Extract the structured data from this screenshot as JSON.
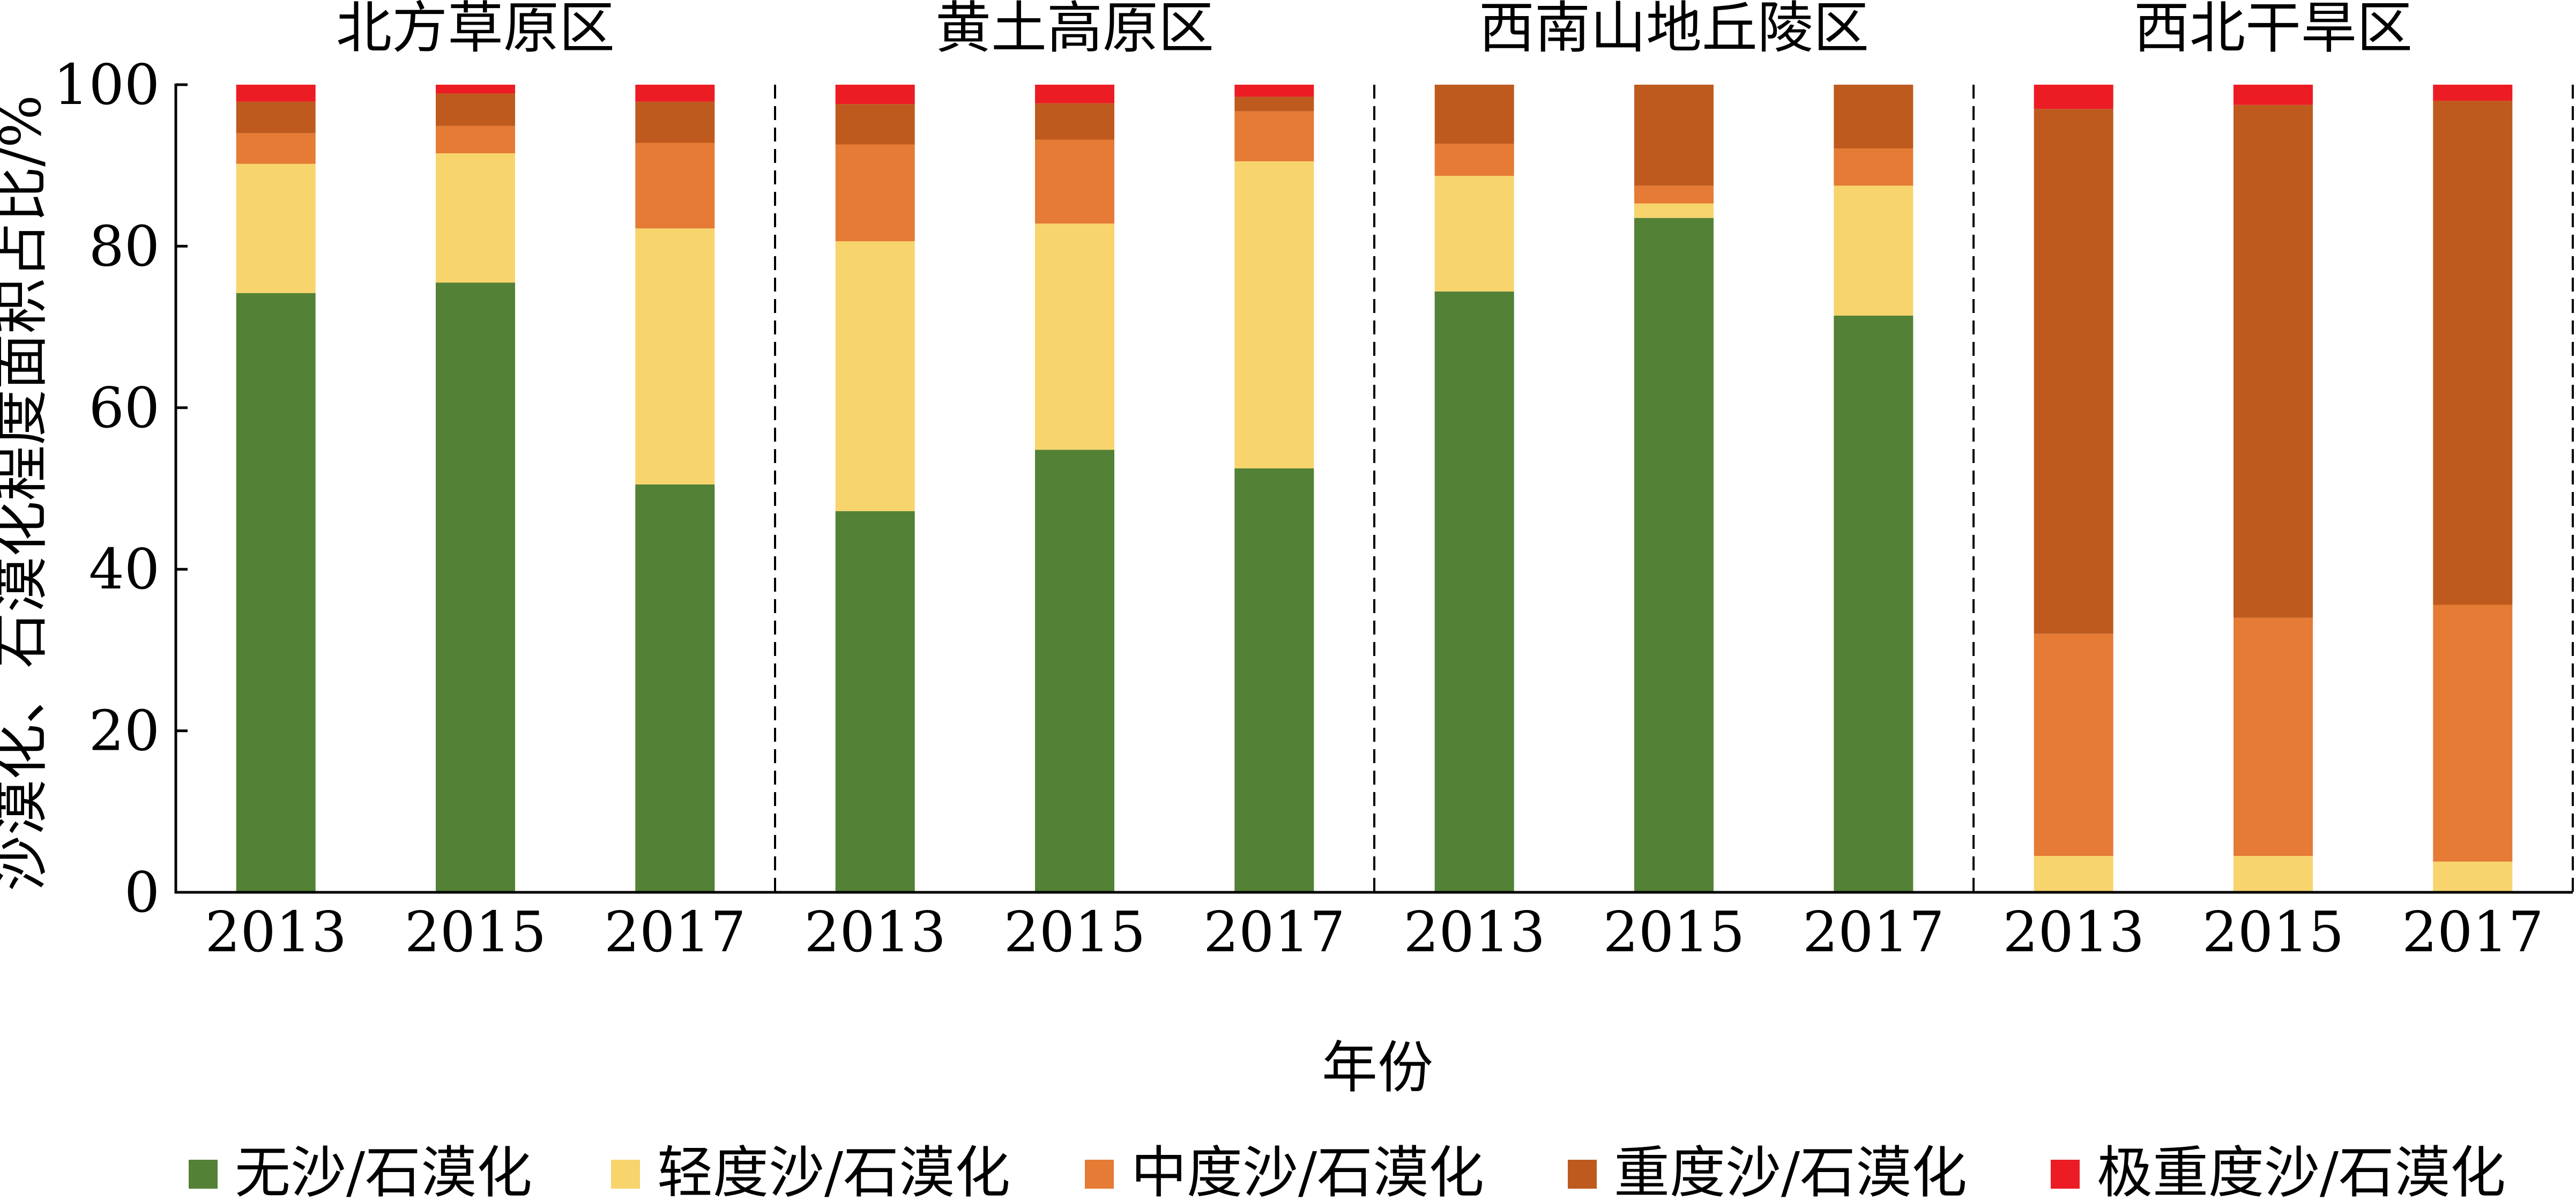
{
  "chart_data": {
    "type": "bar",
    "stacked": true,
    "ylabel": "沙漠化、石漠化程度面积占比/%",
    "xlabel": "年份",
    "ylim": [
      0,
      100
    ],
    "yticks": [
      0,
      20,
      40,
      60,
      80,
      100
    ],
    "legend_position": "bottom",
    "series": [
      {
        "name": "无沙/石漠化",
        "color": "#538135"
      },
      {
        "name": "轻度沙/石漠化",
        "color": "#F8D46D"
      },
      {
        "name": "中度沙/石漠化",
        "color": "#E57B35"
      },
      {
        "name": "重度沙/石漠化",
        "color": "#BE5A1E"
      },
      {
        "name": "极重度沙/石漠化",
        "color": "#EC1C24"
      }
    ],
    "panels": [
      {
        "title": "北方草原区",
        "bars": [
          {
            "year": "2013",
            "values": [
              74.2,
              16.0,
              3.8,
              3.9,
              2.1
            ]
          },
          {
            "year": "2015",
            "values": [
              75.5,
              16.0,
              3.4,
              4.0,
              1.1
            ]
          },
          {
            "year": "2017",
            "values": [
              50.5,
              31.7,
              10.6,
              5.1,
              2.1
            ]
          }
        ]
      },
      {
        "title": "黄土高原区",
        "bars": [
          {
            "year": "2013",
            "values": [
              47.2,
              33.4,
              12.0,
              5.0,
              2.4
            ]
          },
          {
            "year": "2015",
            "values": [
              54.8,
              28.0,
              10.4,
              4.5,
              2.3
            ]
          },
          {
            "year": "2017",
            "values": [
              52.5,
              38.0,
              6.2,
              1.8,
              1.5
            ]
          }
        ]
      },
      {
        "title": "西南山地丘陵区",
        "bars": [
          {
            "year": "2013",
            "values": [
              74.4,
              14.3,
              4.0,
              7.3,
              0
            ]
          },
          {
            "year": "2015",
            "values": [
              83.5,
              1.8,
              2.2,
              12.5,
              0
            ]
          },
          {
            "year": "2017",
            "values": [
              71.4,
              16.1,
              4.6,
              7.9,
              0
            ]
          }
        ]
      },
      {
        "title": "西北干旱区",
        "bars": [
          {
            "year": "2013",
            "values": [
              0,
              4.5,
              27.5,
              65.0,
              3.0
            ]
          },
          {
            "year": "2015",
            "values": [
              0,
              4.5,
              29.5,
              63.5,
              2.5
            ]
          },
          {
            "year": "2017",
            "values": [
              0,
              3.8,
              31.8,
              62.4,
              2.0
            ]
          }
        ]
      }
    ]
  }
}
